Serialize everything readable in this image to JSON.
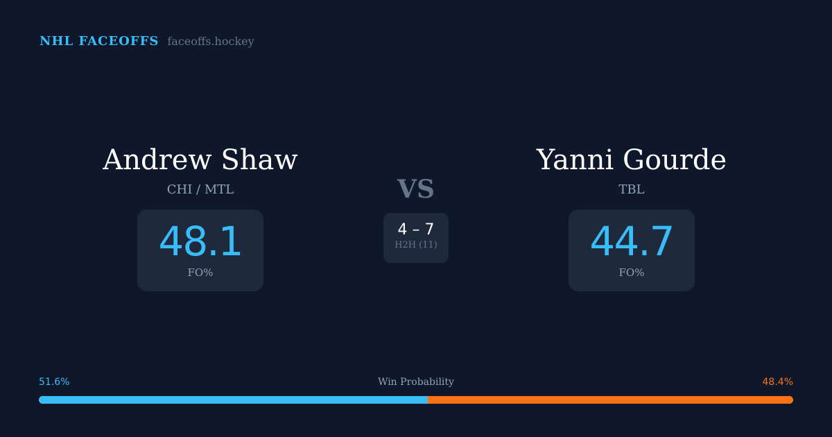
{
  "brand": {
    "name": "NHL FACEOFFS",
    "site": "faceoffs.hockey"
  },
  "player_a": {
    "name": "Andrew Shaw",
    "team": "CHI / MTL",
    "fo_pct": "48.1",
    "fo_label": "FO%"
  },
  "player_b": {
    "name": "Yanni Gourde",
    "team": "TBL",
    "fo_pct": "44.7",
    "fo_label": "FO%"
  },
  "vs": "VS",
  "h2h": {
    "score": "4 – 7",
    "label": "H2H (11)"
  },
  "win_probability": {
    "label": "Win Probability",
    "a_text": "51.6%",
    "b_text": "48.4%",
    "a_value": 51.6,
    "b_value": 48.4
  },
  "colors": {
    "accent_a": "#38bdf8",
    "accent_b": "#f97316",
    "background": "#0f172a"
  }
}
